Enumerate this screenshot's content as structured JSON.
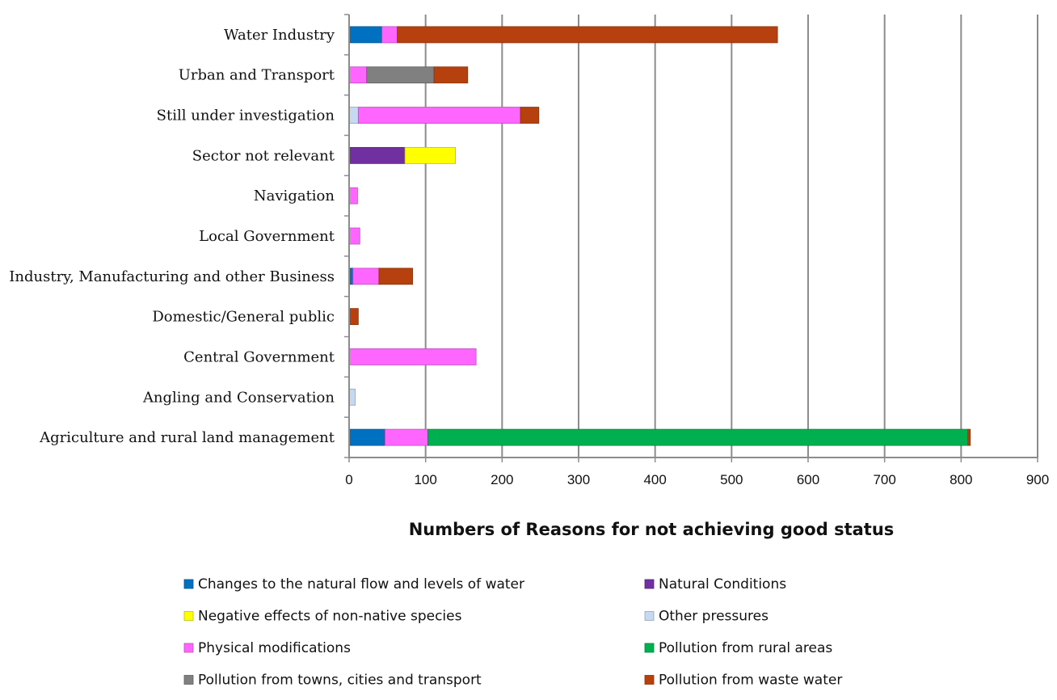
{
  "chart_data": {
    "type": "bar",
    "orientation": "horizontal",
    "stacked": true,
    "xlabel": "Numbers of Reasons for not achieving good status",
    "ylabel": "",
    "xlim": [
      0,
      900
    ],
    "xticks": [
      0,
      100,
      200,
      300,
      400,
      500,
      600,
      700,
      800,
      900
    ],
    "grid": "vertical",
    "legend_position": "bottom",
    "categories": [
      "Agriculture and rural land management",
      "Angling and Conservation",
      "Central Government",
      "Domestic/General public",
      "Industry, Manufacturing and other Business",
      "Local Government",
      "Navigation",
      "Sector not relevant",
      "Still under investigation",
      "Urban and Transport",
      "Water Industry"
    ],
    "series": [
      {
        "name": "Changes to the natural flow and levels of water",
        "color": "#0070c0",
        "values": [
          47,
          0,
          0,
          0,
          5,
          0,
          0,
          0,
          0,
          0,
          43
        ]
      },
      {
        "name": "Natural Conditions",
        "color": "#7030a0",
        "values": [
          0,
          0,
          0,
          0,
          0,
          0,
          0,
          73,
          0,
          0,
          0
        ]
      },
      {
        "name": "Negative effects of non-native species",
        "color": "#ffff00",
        "values": [
          0,
          0,
          0,
          0,
          0,
          0,
          0,
          66,
          0,
          0,
          0
        ]
      },
      {
        "name": "Other pressures",
        "color": "#c6d9f1",
        "values": [
          0,
          8,
          0,
          0,
          0,
          0,
          0,
          0,
          12,
          0,
          0
        ]
      },
      {
        "name": "Physical modifications",
        "color": "#ff66ff",
        "values": [
          56,
          0,
          166,
          0,
          34,
          14,
          11,
          0,
          212,
          23,
          20
        ]
      },
      {
        "name": "Pollution from rural areas",
        "color": "#00b050",
        "values": [
          706,
          0,
          0,
          0,
          0,
          0,
          0,
          0,
          0,
          0,
          0
        ]
      },
      {
        "name": "Pollution from towns, cities and transport",
        "color": "#808080",
        "values": [
          0,
          0,
          0,
          0,
          0,
          0,
          0,
          0,
          0,
          88,
          0
        ]
      },
      {
        "name": "Pollution from waste water",
        "color": "#b7410e",
        "values": [
          3,
          0,
          0,
          12,
          44,
          0,
          0,
          0,
          24,
          44,
          497
        ]
      }
    ]
  }
}
